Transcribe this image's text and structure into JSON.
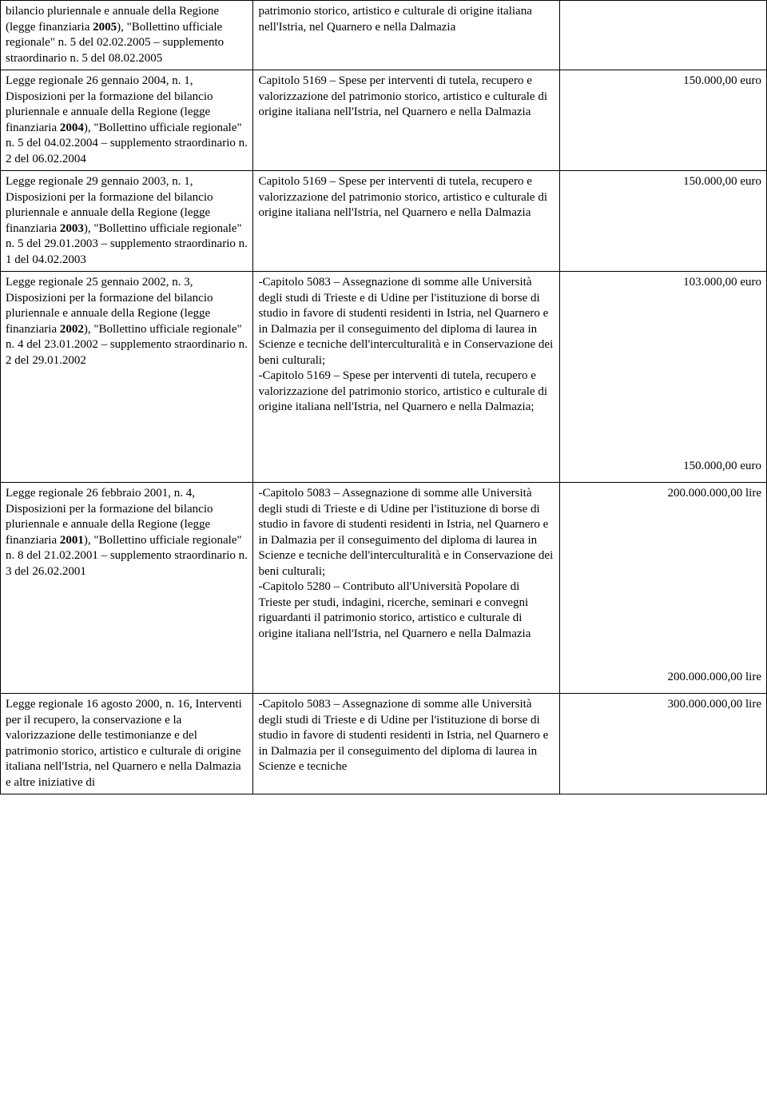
{
  "table": {
    "column_widths": [
      "33%",
      "40%",
      "27%"
    ],
    "border_color": "#000000",
    "font_family": "Times New Roman",
    "font_size_pt": 11,
    "rows": [
      {
        "col1_parts": [
          {
            "t": "bilancio pluriennale e annuale della Regione (legge finanziaria "
          },
          {
            "t": "2005",
            "bold": true
          },
          {
            "t": "), \"Bollettino ufficiale regionale\" n. 5 del 02.02.2005 – supplemento straordinario n. 5 del 08.02.2005"
          }
        ],
        "col2_parts": [
          {
            "t": "patrimonio storico, artistico e culturale di origine italiana nell'Istria, nel Quarnero e nella Dalmazia"
          }
        ],
        "col3_amounts": []
      },
      {
        "col1_parts": [
          {
            "t": "Legge regionale 26 gennaio 2004, n. 1, Disposizioni per la formazione del bilancio pluriennale e annuale della Regione (legge finanziaria "
          },
          {
            "t": "2004",
            "bold": true
          },
          {
            "t": "), \"Bollettino ufficiale regionale\" n. 5 del 04.02.2004 – supplemento straordinario n. 2 del 06.02.2004"
          }
        ],
        "col2_parts": [
          {
            "t": "Capitolo 5169 – Spese per interventi di tutela, recupero e valorizzazione del patrimonio storico, artistico e culturale di origine italiana nell'Istria, nel Quarnero e nella Dalmazia"
          }
        ],
        "col3_amounts": [
          "150.000,00 euro"
        ]
      },
      {
        "col1_parts": [
          {
            "t": "Legge regionale 29 gennaio 2003, n. 1, Disposizioni per la formazione del bilancio pluriennale e annuale della Regione (legge finanziaria "
          },
          {
            "t": "2003",
            "bold": true
          },
          {
            "t": "), \"Bollettino ufficiale regionale\" n. 5 del 29.01.2003 – supplemento straordinario n. 1 del 04.02.2003"
          }
        ],
        "col2_parts": [
          {
            "t": "Capitolo 5169 – Spese per interventi di tutela, recupero e valorizzazione del patrimonio storico, artistico e culturale di origine italiana nell'Istria, nel Quarnero e nella Dalmazia"
          }
        ],
        "col3_amounts": [
          "150.000,00 euro"
        ]
      },
      {
        "col1_parts": [
          {
            "t": "Legge regionale 25 gennaio 2002, n. 3, Disposizioni per la formazione del bilancio pluriennale e annuale della Regione (legge finanziaria "
          },
          {
            "t": "2002",
            "bold": true
          },
          {
            "t": "), \"Bollettino ufficiale regionale\" n. 4 del 23.01.2002 – supplemento straordinario n. 2 del 29.01.2002"
          }
        ],
        "col2_parts": [
          {
            "t": "-Capitolo 5083 – Assegnazione di somme alle Università degli studi di Trieste e di Udine per l'istituzione di borse di studio in favore di studenti residenti in Istria, nel Quarnero e in Dalmazia per il conseguimento del diploma di laurea in Scienze e tecniche dell'interculturalità e in Conservazione dei beni culturali;\n-Capitolo 5169 – Spese per interventi di tutela, recupero e valorizzazione del patrimonio storico, artistico e culturale di origine italiana nell'Istria, nel Quarnero e nella Dalmazia;"
          }
        ],
        "col3_amounts": [
          "103.000,00 euro",
          "",
          "",
          "",
          "",
          "",
          "",
          "",
          "",
          "150.000,00 euro"
        ]
      },
      {
        "col1_parts": [
          {
            "t": "Legge regionale 26 febbraio 2001, n. 4, Disposizioni per la formazione del bilancio pluriennale e annuale della Regione (legge finanziaria "
          },
          {
            "t": "2001",
            "bold": true
          },
          {
            "t": "), \"Bollettino ufficiale regionale\" n. 8 del 21.02.2001 – supplemento straordinario n. 3 del 26.02.2001"
          }
        ],
        "col2_parts": [
          {
            "t": "-Capitolo 5083 – Assegnazione di somme alle Università degli studi di Trieste e di Udine per l'istituzione di borse di studio in favore di studenti residenti in Istria, nel Quarnero e in Dalmazia per il conseguimento del diploma di laurea in Scienze e tecniche dell'interculturalità e in Conservazione dei beni culturali;\n-Capitolo 5280 – Contributo all'Università Popolare di Trieste per studi, indagini, ricerche, seminari e convegni riguardanti il patrimonio storico, artistico e culturale di origine italiana nell'Istria, nel Quarnero e nella Dalmazia"
          }
        ],
        "col3_amounts": [
          "200.000.000,00 lire",
          "",
          "",
          "",
          "",
          "",
          "",
          "",
          "",
          "200.000.000,00 lire"
        ]
      },
      {
        "col1_parts": [
          {
            "t": "Legge regionale 16 agosto 2000, n. 16, Interventi per il recupero, la conservazione e la valorizzazione delle testimonianze e del patrimonio storico, artistico e culturale di origine italiana nell'Istria, nel Quarnero e nella Dalmazia e altre iniziative di"
          }
        ],
        "col2_parts": [
          {
            "t": "-Capitolo 5083 – Assegnazione di somme alle Università degli studi di Trieste e di Udine per l'istituzione di borse di studio in favore di studenti residenti in Istria, nel Quarnero e in Dalmazia per il conseguimento del diploma di laurea in Scienze e tecniche"
          }
        ],
        "col3_amounts": [
          "300.000.000,00 lire"
        ]
      }
    ]
  }
}
